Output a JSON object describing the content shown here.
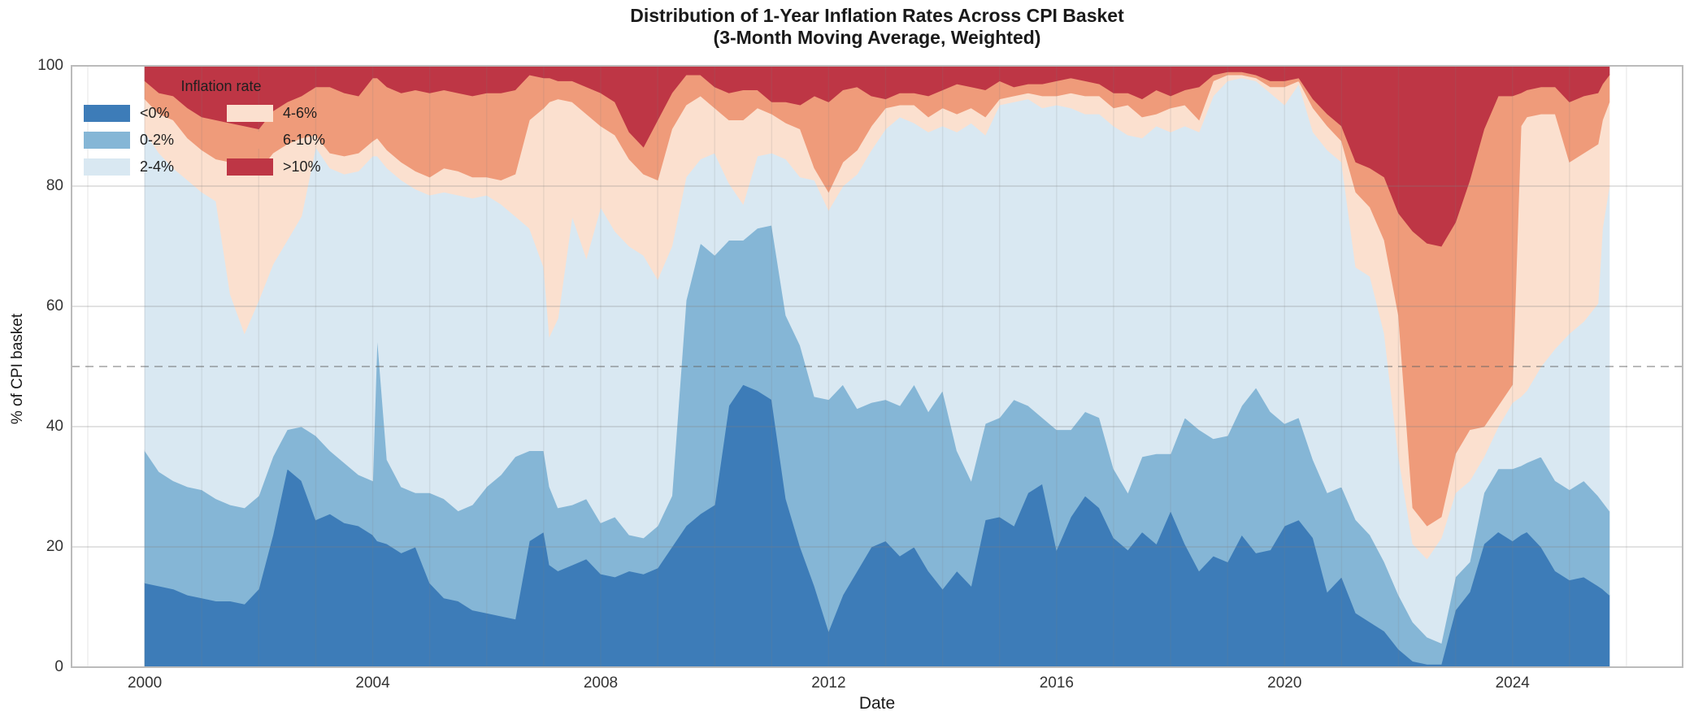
{
  "title": {
    "line1": "Distribution of 1-Year Inflation Rates Across CPI Basket",
    "line2": "(3-Month Moving Average, Weighted)"
  },
  "axes": {
    "x_label": "Date",
    "y_label": "% of CPI basket",
    "x_ticks": [
      2000,
      2004,
      2008,
      2012,
      2016,
      2020,
      2024
    ],
    "y_ticks": [
      0,
      20,
      40,
      60,
      80,
      100
    ]
  },
  "legend": {
    "title": "Inflation rate"
  },
  "colors": {
    "grid": "#cccccc",
    "spine": "#bbbbbb",
    "reference_dash": "#9a9a9a",
    "text": "#1a1a1a"
  },
  "chart_data": {
    "type": "area",
    "stacked": true,
    "normalized_total": 100,
    "title": "Distribution of 1-Year Inflation Rates Across CPI Basket (3-Month Moving Average, Weighted)",
    "xlabel": "Date",
    "ylabel": "% of CPI basket",
    "xlim": [
      1998.715,
      2026.985
    ],
    "ylim": [
      0,
      100
    ],
    "grid": true,
    "reference_line_y": 50,
    "legend_position": "upper-left",
    "x_units": "decimal_years",
    "x": [
      2000.0,
      2000.25,
      2000.5,
      2000.75,
      2001.0,
      2001.25,
      2001.5,
      2001.75,
      2002.0,
      2002.25,
      2002.5,
      2002.75,
      2003.0,
      2003.25,
      2003.5,
      2003.75,
      2004.0,
      2004.08,
      2004.25,
      2004.5,
      2004.75,
      2005.0,
      2005.25,
      2005.5,
      2005.75,
      2006.0,
      2006.25,
      2006.5,
      2006.75,
      2007.0,
      2007.1,
      2007.25,
      2007.5,
      2007.75,
      2008.0,
      2008.25,
      2008.5,
      2008.75,
      2009.0,
      2009.25,
      2009.5,
      2009.75,
      2010.0,
      2010.25,
      2010.5,
      2010.75,
      2011.0,
      2011.25,
      2011.5,
      2011.75,
      2012.0,
      2012.25,
      2012.5,
      2012.75,
      2013.0,
      2013.25,
      2013.5,
      2013.75,
      2014.0,
      2014.25,
      2014.5,
      2014.75,
      2015.0,
      2015.25,
      2015.5,
      2015.75,
      2016.0,
      2016.25,
      2016.5,
      2016.75,
      2017.0,
      2017.25,
      2017.5,
      2017.75,
      2018.0,
      2018.25,
      2018.5,
      2018.75,
      2019.0,
      2019.25,
      2019.5,
      2019.75,
      2020.0,
      2020.25,
      2020.5,
      2020.75,
      2021.0,
      2021.25,
      2021.5,
      2021.75,
      2022.0,
      2022.25,
      2022.5,
      2022.75,
      2023.0,
      2023.25,
      2023.5,
      2023.75,
      2024.0,
      2024.15,
      2024.25,
      2024.5,
      2024.75,
      2025.0,
      2025.25,
      2025.5,
      2025.58,
      2025.7
    ],
    "series": [
      {
        "name": "<0%",
        "color": "#3d7cb8",
        "values": [
          14,
          13.5,
          13,
          12,
          11.5,
          11,
          11,
          10.5,
          13,
          22,
          33,
          31,
          24.5,
          25.5,
          24,
          23.5,
          22,
          21,
          20.5,
          19,
          20,
          14,
          11.5,
          11,
          9.5,
          9,
          8.5,
          8,
          21,
          22.5,
          17,
          16,
          17,
          18,
          15.5,
          15,
          16,
          15.5,
          16.5,
          20,
          23.5,
          25.5,
          27,
          43.5,
          47,
          46,
          44.5,
          28,
          20,
          13.5,
          6,
          12,
          16,
          20,
          21,
          18.5,
          20,
          16,
          13,
          16,
          13.5,
          24.5,
          25,
          23.5,
          29,
          30.5,
          19.5,
          25,
          28.5,
          26.5,
          21.5,
          19.5,
          22.5,
          20.5,
          26,
          20.5,
          16,
          18.5,
          17.5,
          22,
          19,
          19.5,
          23.5,
          24.5,
          21.5,
          12.5,
          15,
          9,
          7.5,
          6,
          3,
          1,
          0.5,
          0.5,
          9.5,
          12.5,
          20.5,
          22.5,
          21,
          22,
          22.5,
          20,
          16,
          14.5,
          15,
          13.5,
          13,
          12
        ]
      },
      {
        "name": "0-2%",
        "color": "#85b6d6",
        "values": [
          22,
          19,
          18,
          18,
          18,
          17,
          16,
          16,
          15.5,
          13,
          6.5,
          9,
          14,
          10.5,
          10,
          8.5,
          9,
          34,
          14,
          11,
          9,
          15,
          16.5,
          15,
          17.5,
          21,
          23.5,
          27,
          15,
          13.5,
          13,
          10.5,
          10,
          10,
          8.5,
          10,
          6,
          6,
          7,
          8.5,
          37.5,
          45,
          41.5,
          27.5,
          24,
          27,
          29,
          30.5,
          33.5,
          31.5,
          38.5,
          35,
          27,
          24,
          23.5,
          25,
          27,
          26.5,
          33,
          20,
          17.5,
          16,
          16.5,
          21,
          14.5,
          11,
          20,
          14.5,
          14,
          15,
          11.5,
          9.5,
          12.5,
          15,
          9.5,
          21,
          23.5,
          19.5,
          21,
          21.5,
          27.5,
          23,
          17,
          17,
          13,
          16.5,
          15,
          15.5,
          14.5,
          11.5,
          9,
          6.5,
          4.5,
          3.5,
          5.5,
          5,
          8.5,
          10.5,
          12,
          11.5,
          11.5,
          15,
          15,
          15,
          16,
          15,
          14.5,
          14
        ]
      },
      {
        "name": "2-4%",
        "color": "#d9e8f2",
        "values": [
          53,
          53,
          52,
          51,
          49.5,
          49.5,
          35,
          29,
          32.5,
          32,
          31.5,
          35,
          48,
          47,
          48,
          50.5,
          54,
          30,
          48.5,
          51,
          50.5,
          49.5,
          51,
          52.5,
          51,
          48.5,
          45,
          40,
          37,
          30.5,
          25,
          31.5,
          48,
          40,
          52.5,
          47.5,
          48,
          47,
          41,
          41.5,
          20.5,
          14,
          17,
          9.5,
          6,
          12,
          12,
          26,
          28,
          36,
          31.5,
          33,
          39,
          42,
          45,
          48,
          43.5,
          46.5,
          44,
          53,
          59.5,
          48,
          52,
          49.5,
          51,
          51.5,
          54,
          53.5,
          49.5,
          50.5,
          57,
          59.5,
          53,
          54.5,
          53.5,
          48.5,
          49.5,
          57,
          59,
          54.5,
          51,
          53,
          53,
          55.5,
          54.5,
          57,
          54,
          42,
          43,
          38,
          23,
          13,
          13,
          17.5,
          14,
          13.5,
          6,
          7,
          11,
          11.5,
          12,
          15,
          22,
          26,
          26.5,
          32,
          45.5,
          54
        ]
      },
      {
        "name": "4-6%",
        "color": "#fbe0cf",
        "values": [
          5.5,
          6.5,
          8,
          7,
          7,
          7,
          22,
          27.5,
          21.5,
          18.5,
          16,
          13,
          2,
          2.5,
          3,
          3,
          2.5,
          3,
          3,
          3,
          3,
          3,
          4,
          4,
          3.5,
          3,
          4,
          7,
          18,
          26.5,
          39,
          36.5,
          19,
          24,
          13.5,
          16,
          14.5,
          13.5,
          16.5,
          19.5,
          12,
          10.5,
          7.5,
          10.5,
          14,
          8,
          6.5,
          6,
          8,
          2,
          3,
          4,
          4,
          4,
          3.5,
          2,
          3,
          2.5,
          3,
          3,
          2.5,
          3,
          1,
          1,
          1,
          2,
          1.5,
          2.5,
          3,
          3,
          3,
          5,
          3.5,
          2,
          4,
          3.5,
          2,
          2.5,
          1,
          0.5,
          0.5,
          1,
          3,
          0.5,
          4,
          4,
          3.5,
          12.5,
          11.5,
          15.5,
          23.5,
          6,
          5.5,
          3.5,
          6.5,
          8.5,
          5,
          3.5,
          3,
          45,
          45.5,
          42,
          39,
          28.5,
          28,
          26.5,
          18,
          14
        ]
      },
      {
        "name": "6-10%",
        "color": "#ef9b7a",
        "values": [
          3,
          3.5,
          4,
          5,
          5.5,
          6.5,
          6.5,
          7,
          7,
          7,
          7,
          7,
          8,
          11,
          10.5,
          9.5,
          10.5,
          10,
          10.5,
          11.5,
          13.5,
          14,
          13,
          13,
          13.5,
          14,
          14.5,
          14,
          7.5,
          5,
          4,
          3,
          3.5,
          4.5,
          5.5,
          5.5,
          4.5,
          4.5,
          10,
          6,
          5,
          3.5,
          3.5,
          4.5,
          5,
          3,
          2,
          3.5,
          4,
          12,
          15,
          12,
          10.5,
          5,
          1.5,
          2,
          2,
          3.5,
          3,
          5,
          3.5,
          4.5,
          3,
          1.5,
          1.5,
          2,
          2.5,
          2.5,
          2.5,
          2,
          2.5,
          2,
          3,
          4,
          2,
          2.5,
          5.5,
          1,
          0.5,
          0.5,
          0.5,
          1,
          1,
          0.5,
          1.5,
          2,
          2.5,
          5,
          6.5,
          10.5,
          17,
          46,
          47,
          45,
          38.5,
          41.5,
          49.5,
          51.5,
          48,
          5.5,
          4.5,
          4.5,
          4.5,
          10,
          9.5,
          8.5,
          6,
          4.5
        ]
      },
      {
        "name": ">10%",
        "color": "#be3645",
        "values": [
          2.5,
          4.5,
          5,
          7,
          8.5,
          9,
          9.5,
          10,
          10.5,
          7.5,
          6,
          5,
          3.5,
          3.5,
          4.5,
          5,
          2,
          2,
          3.5,
          4.5,
          4,
          4.5,
          4,
          4.5,
          5,
          4.5,
          4.5,
          4,
          1.5,
          2,
          2,
          2.5,
          2.5,
          3.5,
          4.5,
          6,
          11,
          13.5,
          9,
          4.5,
          1.5,
          1.5,
          3.5,
          4.5,
          4,
          4,
          6,
          6,
          6.5,
          5,
          6,
          4,
          3.5,
          5,
          5.5,
          4.5,
          4.5,
          5,
          4,
          3,
          3.5,
          4,
          2.5,
          3.5,
          3,
          3,
          2.5,
          2,
          2.5,
          3,
          4.5,
          4.5,
          5.5,
          4,
          5,
          4,
          3.5,
          1.5,
          1,
          1,
          1.5,
          2.5,
          2.5,
          2,
          5.5,
          8,
          10,
          16,
          17,
          18.5,
          24.5,
          27.5,
          29.5,
          30,
          26,
          19,
          10.5,
          5,
          5,
          4.5,
          4,
          3.5,
          3.5,
          6,
          5,
          4.5,
          3,
          1.5
        ]
      }
    ]
  }
}
